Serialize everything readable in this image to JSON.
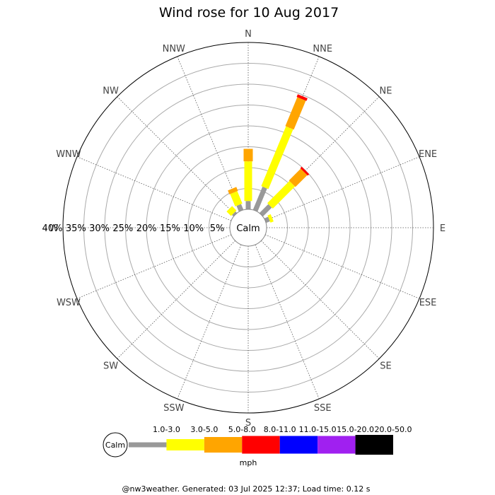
{
  "chart_data": {
    "type": "wind-rose",
    "title": "Wind rose for 10 Aug 2017",
    "directions": [
      "N",
      "NNE",
      "NE",
      "ENE",
      "E",
      "ESE",
      "SE",
      "SSE",
      "S",
      "SSW",
      "SW",
      "WSW",
      "W",
      "WNW",
      "NW",
      "NNW"
    ],
    "radial_ticks": [
      "40%",
      "35%",
      "30%",
      "25%",
      "20%",
      "15%",
      "10%",
      "5%"
    ],
    "radial_max": 40,
    "calm_label": "Calm",
    "unit": "mph",
    "legend_calm_label": "Calm",
    "bins": [
      {
        "label": "1.0-3.0",
        "color": "#999999"
      },
      {
        "label": "3.0-5.0",
        "color": "#ffff00"
      },
      {
        "label": "5.0-8.0",
        "color": "#ffa500"
      },
      {
        "label": "8.0-11.0",
        "color": "#ff0000"
      },
      {
        "label": "11.0-15.0",
        "color": "#0000ff"
      },
      {
        "label": "15.0-20.0",
        "color": "#a020f0"
      },
      {
        "label": "20.0-50.0",
        "color": "#000000"
      }
    ],
    "series": [
      {
        "direction": "N",
        "values": [
          2.0,
          9.5,
          3.0,
          0,
          0,
          0,
          0
        ]
      },
      {
        "direction": "NNE",
        "values": [
          6.0,
          15.5,
          7.5,
          0.7,
          0,
          0,
          0
        ]
      },
      {
        "direction": "NE",
        "values": [
          3.0,
          7.5,
          4.0,
          0.5,
          0,
          0,
          0
        ]
      },
      {
        "direction": "ENE",
        "values": [
          1.0,
          0.8,
          0,
          0,
          0,
          0,
          0
        ]
      },
      {
        "direction": "NNW",
        "values": [
          1.5,
          3.2,
          1.0,
          0,
          0,
          0,
          0
        ]
      },
      {
        "direction": "NW",
        "values": [
          0.5,
          1.5,
          0,
          0,
          0,
          0,
          0
        ]
      }
    ]
  },
  "footer": "@nw3weather. Generated: 03 Jul 2025 12:37; Load time: 0.12 s"
}
